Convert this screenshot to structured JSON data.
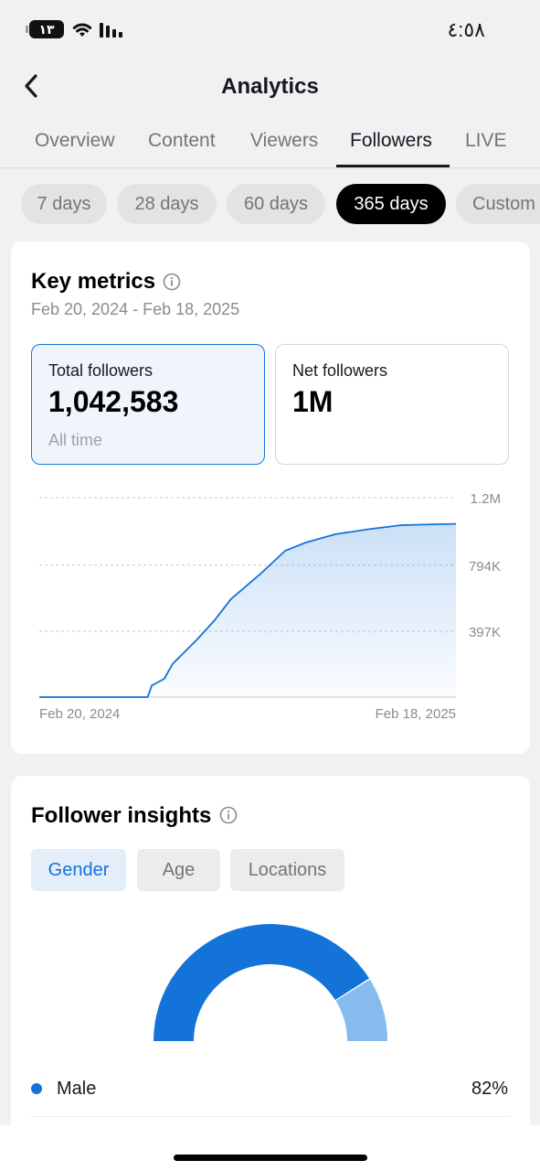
{
  "status_bar": {
    "battery": "١٣",
    "time": "٤:٥٨"
  },
  "header": {
    "title": "Analytics"
  },
  "tabs": [
    {
      "label": "Overview"
    },
    {
      "label": "Content"
    },
    {
      "label": "Viewers"
    },
    {
      "label": "Followers",
      "active": true
    },
    {
      "label": "LIVE"
    }
  ],
  "ranges": [
    {
      "label": "7 days"
    },
    {
      "label": "28 days"
    },
    {
      "label": "60 days"
    },
    {
      "label": "365 days",
      "active": true
    },
    {
      "label": "Custom"
    }
  ],
  "key_metrics": {
    "title": "Key metrics",
    "date_range": "Feb 20, 2024 - Feb 18, 2025",
    "total": {
      "label": "Total followers",
      "value": "1,042,583",
      "sub": "All time"
    },
    "net": {
      "label": "Net followers",
      "value": "1M"
    }
  },
  "chart_data": {
    "type": "area",
    "x_labels": [
      "Feb 20, 2024",
      "Feb 18, 2025"
    ],
    "y_ticks": [
      "397K",
      "794K",
      "1.2M"
    ],
    "ylim": [
      0,
      1200000
    ],
    "grid": true,
    "points": [
      [
        0,
        0
      ],
      [
        0.26,
        0
      ],
      [
        0.27,
        70000
      ],
      [
        0.3,
        110000
      ],
      [
        0.32,
        200000
      ],
      [
        0.38,
        350000
      ],
      [
        0.42,
        460000
      ],
      [
        0.46,
        590000
      ],
      [
        0.53,
        740000
      ],
      [
        0.59,
        880000
      ],
      [
        0.64,
        930000
      ],
      [
        0.71,
        980000
      ],
      [
        0.79,
        1010000
      ],
      [
        0.87,
        1035000
      ],
      [
        0.95,
        1040000
      ],
      [
        1,
        1042583
      ]
    ],
    "color": "#1473d8"
  },
  "insights": {
    "title": "Follower insights",
    "tabs": [
      {
        "label": "Gender",
        "active": true
      },
      {
        "label": "Age"
      },
      {
        "label": "Locations"
      }
    ],
    "gender": [
      {
        "label": "Male",
        "value": 82,
        "display": "82%",
        "color": "#1473d8"
      },
      {
        "value": 18,
        "color": "#85bced"
      }
    ]
  }
}
